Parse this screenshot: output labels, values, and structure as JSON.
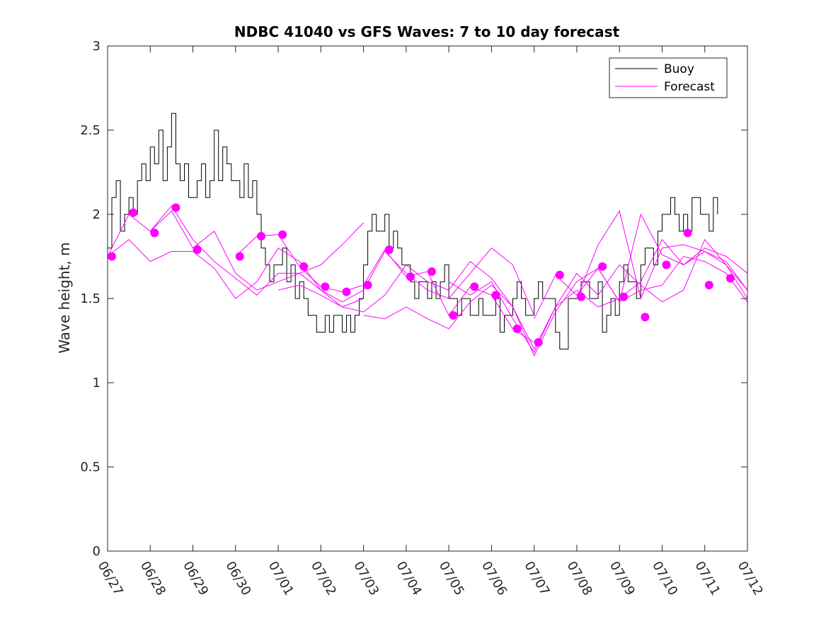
{
  "chart_data": {
    "type": "line",
    "title": "NDBC 41040 vs GFS Waves: 7 to 10 day forecast",
    "xlabel": "",
    "ylabel": "Wave height, m",
    "xlim": [
      "06/27",
      "07/12"
    ],
    "ylim": [
      0,
      3
    ],
    "x_ticks": [
      "06/27",
      "06/28",
      "06/29",
      "06/30",
      "07/01",
      "07/02",
      "07/03",
      "07/04",
      "07/05",
      "07/06",
      "07/07",
      "07/08",
      "07/09",
      "07/10",
      "07/11",
      "07/12"
    ],
    "y_ticks": [
      "0",
      "0.5",
      "1",
      "1.5",
      "2",
      "2.5",
      "3"
    ],
    "grid": false,
    "legend": {
      "placement": "top-right",
      "entries": [
        "Buoy",
        "Forecast"
      ]
    },
    "colors": {
      "buoy": "#000000",
      "forecast": "#ff00ff"
    },
    "buoy": {
      "x_days": [
        0.0,
        0.1,
        0.2,
        0.3,
        0.4,
        0.5,
        0.6,
        0.7,
        0.8,
        0.9,
        1.0,
        1.1,
        1.2,
        1.3,
        1.4,
        1.5,
        1.6,
        1.7,
        1.8,
        1.9,
        2.0,
        2.1,
        2.2,
        2.3,
        2.4,
        2.5,
        2.6,
        2.7,
        2.8,
        2.9,
        3.0,
        3.1,
        3.2,
        3.3,
        3.4,
        3.5,
        3.6,
        3.7,
        3.8,
        3.9,
        4.0,
        4.1,
        4.2,
        4.3,
        4.4,
        4.5,
        4.6,
        4.7,
        4.8,
        4.9,
        5.0,
        5.1,
        5.2,
        5.3,
        5.4,
        5.5,
        5.6,
        5.7,
        5.8,
        5.9,
        6.0,
        6.1,
        6.2,
        6.3,
        6.4,
        6.5,
        6.6,
        6.7,
        6.8,
        6.9,
        7.0,
        7.1,
        7.2,
        7.3,
        7.4,
        7.5,
        7.6,
        7.7,
        7.8,
        7.9,
        8.0,
        8.1,
        8.2,
        8.3,
        8.4,
        8.5,
        8.6,
        8.7,
        8.8,
        8.9,
        9.0,
        9.1,
        9.2,
        9.3,
        9.4,
        9.5,
        9.6,
        9.7,
        9.8,
        9.9,
        10.0,
        10.1,
        10.2,
        10.3,
        10.4,
        10.5,
        10.6,
        10.7,
        10.8,
        10.9,
        11.0,
        11.1,
        11.2,
        11.3,
        11.4,
        11.5,
        11.6,
        11.7,
        11.8,
        11.9,
        12.0,
        12.1,
        12.2,
        12.3,
        12.4,
        12.5,
        12.6,
        12.7,
        12.8,
        12.9,
        13.0,
        13.1,
        13.2,
        13.3,
        13.4,
        13.5,
        13.6,
        13.7,
        13.8,
        13.9,
        14.0,
        14.1,
        14.2,
        14.3
      ],
      "values": [
        1.8,
        2.1,
        2.2,
        1.9,
        2.0,
        2.1,
        2.0,
        2.2,
        2.3,
        2.2,
        2.4,
        2.3,
        2.5,
        2.2,
        2.4,
        2.6,
        2.3,
        2.2,
        2.3,
        2.1,
        2.1,
        2.2,
        2.3,
        2.1,
        2.2,
        2.5,
        2.2,
        2.4,
        2.3,
        2.2,
        2.2,
        2.1,
        2.3,
        2.1,
        2.2,
        2.0,
        1.8,
        1.7,
        1.6,
        1.7,
        1.7,
        1.8,
        1.6,
        1.7,
        1.5,
        1.6,
        1.5,
        1.4,
        1.4,
        1.3,
        1.3,
        1.4,
        1.3,
        1.4,
        1.4,
        1.3,
        1.4,
        1.3,
        1.4,
        1.5,
        1.7,
        1.9,
        2.0,
        1.9,
        1.9,
        2.0,
        1.8,
        1.9,
        1.8,
        1.7,
        1.7,
        1.6,
        1.5,
        1.6,
        1.6,
        1.5,
        1.6,
        1.5,
        1.6,
        1.7,
        1.5,
        1.5,
        1.4,
        1.5,
        1.5,
        1.4,
        1.4,
        1.5,
        1.4,
        1.4,
        1.4,
        1.5,
        1.3,
        1.4,
        1.4,
        1.5,
        1.6,
        1.5,
        1.4,
        1.4,
        1.5,
        1.6,
        1.5,
        1.5,
        1.5,
        1.3,
        1.2,
        1.2,
        1.5,
        1.5,
        1.5,
        1.6,
        1.6,
        1.5,
        1.5,
        1.6,
        1.3,
        1.4,
        1.5,
        1.4,
        1.6,
        1.7,
        1.6,
        1.6,
        1.5,
        1.7,
        1.8,
        1.8,
        1.7,
        1.9,
        2.0,
        2.0,
        2.1,
        2.0,
        1.9,
        2.0,
        1.9,
        2.1,
        2.1,
        2.0,
        2.0,
        1.9,
        2.1,
        2.0
      ]
    },
    "forecast_lines": [
      {
        "x_days": [
          0.0,
          0.5,
          1.0,
          1.5,
          2.0,
          2.5,
          3.0,
          3.5,
          4.0,
          4.5,
          5.0,
          5.5,
          6.0
        ],
        "values": [
          1.75,
          2.0,
          1.9,
          2.02,
          1.8,
          1.9,
          1.65,
          1.55,
          1.6,
          1.65,
          1.7,
          1.82,
          1.95
        ]
      },
      {
        "x_days": [
          0.0,
          0.5,
          1.0,
          1.5,
          2.0,
          2.5,
          3.0,
          3.5,
          4.0,
          4.5,
          5.0,
          5.5,
          6.0
        ],
        "values": [
          1.75,
          1.85,
          1.72,
          1.78,
          1.78,
          1.68,
          1.5,
          1.6,
          1.8,
          1.72,
          1.55,
          1.45,
          1.5
        ]
      },
      {
        "x_days": [
          1.0,
          1.5,
          2.0,
          2.5,
          3.0,
          3.5,
          4.0,
          4.5,
          5.0,
          5.5,
          6.0,
          6.5,
          7.0,
          7.5,
          8.0,
          8.5,
          9.0,
          9.5,
          10.0
        ],
        "values": [
          1.9,
          2.05,
          1.85,
          1.72,
          1.62,
          1.52,
          1.65,
          1.65,
          1.55,
          1.48,
          1.55,
          1.78,
          1.65,
          1.55,
          1.5,
          1.65,
          1.8,
          1.7,
          1.4
        ]
      },
      {
        "x_days": [
          3.0,
          3.5,
          4.0,
          4.5,
          5.0,
          5.5,
          6.0,
          6.5,
          7.0,
          7.5,
          8.0,
          8.5,
          9.0,
          9.5,
          10.0
        ],
        "values": [
          1.75,
          1.87,
          1.88,
          1.69,
          1.57,
          1.54,
          1.58,
          1.79,
          1.63,
          1.66,
          1.4,
          1.57,
          1.52,
          1.32,
          1.24
        ]
      },
      {
        "x_days": [
          6.0,
          6.5,
          7.0,
          7.5,
          8.0,
          8.5,
          9.0,
          9.5,
          10.0,
          10.5,
          11.0,
          11.5,
          12.0,
          12.5,
          13.0,
          13.5,
          14.0,
          14.5,
          15.0
        ],
        "values": [
          1.4,
          1.38,
          1.45,
          1.38,
          1.32,
          1.48,
          1.58,
          1.45,
          1.2,
          1.45,
          1.55,
          1.45,
          1.5,
          1.6,
          1.85,
          1.7,
          1.8,
          1.75,
          1.65
        ]
      },
      {
        "x_days": [
          8.0,
          8.5,
          9.0,
          9.5,
          10.0,
          10.5,
          11.0,
          11.5,
          12.0,
          12.5,
          13.0,
          13.5,
          14.0,
          14.5,
          15.0
        ],
        "values": [
          1.6,
          1.52,
          1.6,
          1.38,
          1.18,
          1.45,
          1.65,
          1.52,
          1.7,
          1.58,
          1.48,
          1.55,
          1.85,
          1.7,
          1.55
        ]
      },
      {
        "x_days": [
          4.0,
          4.5,
          5.0,
          5.5,
          6.0,
          6.5,
          7.0,
          7.5,
          8.0,
          8.5,
          9.0,
          9.5,
          10.0,
          10.5,
          11.0,
          11.5,
          12.0,
          12.5,
          13.0,
          13.5,
          14.0,
          14.5,
          15.0
        ],
        "values": [
          1.55,
          1.58,
          1.52,
          1.45,
          1.42,
          1.52,
          1.7,
          1.6,
          1.55,
          1.72,
          1.62,
          1.45,
          1.16,
          1.42,
          1.6,
          1.68,
          1.48,
          1.55,
          1.58,
          1.75,
          1.72,
          1.65,
          1.48
        ]
      },
      {
        "x_days": [
          10.0,
          10.5,
          11.0,
          11.5,
          12.0,
          12.5,
          13.0,
          13.5,
          14.0,
          14.5,
          15.0
        ],
        "values": [
          1.38,
          1.64,
          1.52,
          1.68,
          1.48,
          2.0,
          1.76,
          1.7,
          1.78,
          1.72,
          1.55
        ]
      },
      {
        "x_days": [
          11.0,
          11.5,
          12.0,
          12.5,
          13.0,
          13.5,
          14.0,
          14.5,
          15.0
        ],
        "values": [
          1.5,
          1.82,
          2.02,
          1.5,
          1.8,
          1.82,
          1.78,
          1.7,
          1.5
        ]
      }
    ],
    "forecast_points": {
      "x_days": [
        0.1,
        0.6,
        1.1,
        1.6,
        2.1,
        3.1,
        3.6,
        4.1,
        4.6,
        5.1,
        5.6,
        6.1,
        6.6,
        7.1,
        7.6,
        8.1,
        8.6,
        9.1,
        9.6,
        10.1,
        10.6,
        11.1,
        11.6,
        12.1,
        12.6,
        13.1,
        13.6,
        14.1,
        14.6
      ],
      "values": [
        1.75,
        2.01,
        1.89,
        2.04,
        1.79,
        1.75,
        1.87,
        1.88,
        1.69,
        1.57,
        1.54,
        1.58,
        1.79,
        1.63,
        1.66,
        1.4,
        1.57,
        1.52,
        1.32,
        1.24,
        1.64,
        1.51,
        1.69,
        1.51,
        1.39,
        1.7,
        1.89,
        1.58,
        1.62
      ]
    }
  }
}
